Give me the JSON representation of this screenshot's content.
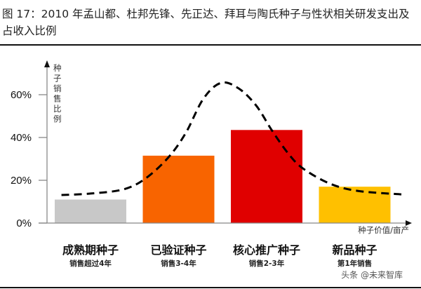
{
  "title": "图 17：2010 年孟山都、杜邦先锋、先正达、拜耳与陶氏种子与性状相关研发支出及占收入比例",
  "watermark": "头条 @未来智库",
  "chart_data": {
    "type": "bar",
    "title": "",
    "ylabel": "种子销售比例",
    "xlabel": "种子价值/亩产",
    "ylim": [
      0,
      70
    ],
    "yticks": [
      "0%",
      "20%",
      "40%",
      "60%"
    ],
    "ytick_values": [
      0,
      20,
      40,
      60
    ],
    "grid": false,
    "categories": [
      "成熟期种子",
      "已验证种子",
      "核心推广种子",
      "新品种子"
    ],
    "subtitles": [
      "销售超过4年",
      "销售3-4年",
      "销售2-3年",
      "第1年销售"
    ],
    "values": [
      11,
      31.5,
      43.5,
      17
    ],
    "colors": [
      "#c8c8c8",
      "#f86400",
      "#e00000",
      "#ffc000"
    ],
    "curve": {
      "style": "dashed",
      "color": "#000000",
      "points": [
        [
          -0.33,
          13.1
        ],
        [
          0,
          13.8
        ],
        [
          0.37,
          15.7
        ],
        [
          0.62,
          20.7
        ],
        [
          0.88,
          30.5
        ],
        [
          1.08,
          42
        ],
        [
          1.28,
          58
        ],
        [
          1.48,
          65.5
        ],
        [
          1.68,
          63
        ],
        [
          1.88,
          55
        ],
        [
          2.06,
          43.3
        ],
        [
          2.24,
          32.8
        ],
        [
          2.41,
          25.6
        ],
        [
          2.72,
          18.4
        ],
        [
          3.04,
          15
        ],
        [
          3.53,
          13.4
        ]
      ]
    }
  }
}
